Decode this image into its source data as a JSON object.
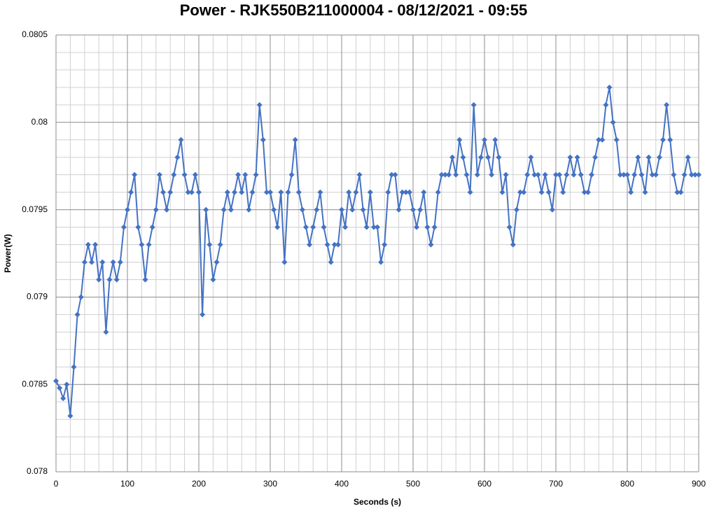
{
  "chart_data": {
    "type": "line",
    "title": "Power - RJK550B211000004 - 08/12/2021 - 09:55",
    "x_label": "Seconds (s)",
    "y_label": "Power(W)",
    "xlim": [
      0,
      900
    ],
    "xticks": [
      0,
      100,
      200,
      300,
      400,
      500,
      600,
      700,
      800,
      900
    ],
    "ylim": [
      0.078,
      0.0805
    ],
    "yticks": [
      0.078,
      0.0785,
      0.079,
      0.0795,
      0.08,
      0.0805
    ],
    "grid": true,
    "minor_grid": true,
    "series": [
      {
        "name": "Power(W)",
        "color": "#4472c4",
        "x": [
          0,
          5,
          10,
          15,
          20,
          25,
          30,
          35,
          40,
          45,
          50,
          55,
          60,
          65,
          70,
          75,
          80,
          85,
          90,
          95,
          100,
          105,
          110,
          115,
          120,
          125,
          130,
          135,
          140,
          145,
          150,
          155,
          160,
          165,
          170,
          175,
          180,
          185,
          190,
          195,
          200,
          205,
          210,
          215,
          220,
          225,
          230,
          235,
          240,
          245,
          250,
          255,
          260,
          265,
          270,
          275,
          280,
          285,
          290,
          295,
          300,
          305,
          310,
          315,
          320,
          325,
          330,
          335,
          340,
          345,
          350,
          355,
          360,
          365,
          370,
          375,
          380,
          385,
          390,
          395,
          400,
          405,
          410,
          415,
          420,
          425,
          430,
          435,
          440,
          445,
          450,
          455,
          460,
          465,
          470,
          475,
          480,
          485,
          490,
          495,
          500,
          505,
          510,
          515,
          520,
          525,
          530,
          535,
          540,
          545,
          550,
          555,
          560,
          565,
          570,
          575,
          580,
          585,
          590,
          595,
          600,
          605,
          610,
          615,
          620,
          625,
          630,
          635,
          640,
          645,
          650,
          655,
          660,
          665,
          670,
          675,
          680,
          685,
          690,
          695,
          700,
          705,
          710,
          715,
          720,
          725,
          730,
          735,
          740,
          745,
          750,
          755,
          760,
          765,
          770,
          775,
          780,
          785,
          790,
          795,
          800,
          805,
          810,
          815,
          820,
          825,
          830,
          835,
          840,
          845,
          850,
          855,
          860,
          865,
          870,
          875,
          880,
          885,
          890,
          895,
          900
        ],
        "values": [
          0.07852,
          0.07848,
          0.07842,
          0.0785,
          0.07832,
          0.0786,
          0.0789,
          0.079,
          0.0792,
          0.0793,
          0.0792,
          0.0793,
          0.0791,
          0.0792,
          0.0788,
          0.0791,
          0.0792,
          0.0791,
          0.0792,
          0.0794,
          0.0795,
          0.0796,
          0.0797,
          0.0794,
          0.0793,
          0.0791,
          0.0793,
          0.0794,
          0.0795,
          0.0797,
          0.0796,
          0.0795,
          0.0796,
          0.0797,
          0.0798,
          0.0799,
          0.0797,
          0.0796,
          0.0796,
          0.0797,
          0.0796,
          0.0789,
          0.0795,
          0.0793,
          0.0791,
          0.0792,
          0.0793,
          0.0795,
          0.0796,
          0.0795,
          0.0796,
          0.0797,
          0.0796,
          0.0797,
          0.0795,
          0.0796,
          0.0797,
          0.0801,
          0.0799,
          0.0796,
          0.0796,
          0.0795,
          0.0794,
          0.0796,
          0.0792,
          0.0796,
          0.0797,
          0.0799,
          0.0796,
          0.0795,
          0.0794,
          0.0793,
          0.0794,
          0.0795,
          0.0796,
          0.0794,
          0.0793,
          0.0792,
          0.0793,
          0.0793,
          0.0795,
          0.0794,
          0.0796,
          0.0795,
          0.0796,
          0.0797,
          0.0795,
          0.0794,
          0.0796,
          0.0794,
          0.0794,
          0.0792,
          0.0793,
          0.0796,
          0.0797,
          0.0797,
          0.0795,
          0.0796,
          0.0796,
          0.0796,
          0.0795,
          0.0794,
          0.0795,
          0.0796,
          0.0794,
          0.0793,
          0.0794,
          0.0796,
          0.0797,
          0.0797,
          0.0797,
          0.0798,
          0.0797,
          0.0799,
          0.0798,
          0.0797,
          0.0796,
          0.0801,
          0.0797,
          0.0798,
          0.0799,
          0.0798,
          0.0797,
          0.0799,
          0.0798,
          0.0796,
          0.0797,
          0.0794,
          0.0793,
          0.0795,
          0.0796,
          0.0796,
          0.0797,
          0.0798,
          0.0797,
          0.0797,
          0.0796,
          0.0797,
          0.0796,
          0.0795,
          0.0797,
          0.0797,
          0.0796,
          0.0797,
          0.0798,
          0.0797,
          0.0798,
          0.0797,
          0.0796,
          0.0796,
          0.0797,
          0.0798,
          0.0799,
          0.0799,
          0.0801,
          0.0802,
          0.08,
          0.0799,
          0.0797,
          0.0797,
          0.0797,
          0.0796,
          0.0797,
          0.0798,
          0.0797,
          0.0796,
          0.0798,
          0.0797,
          0.0797,
          0.0798,
          0.0799,
          0.0801,
          0.0799,
          0.0797,
          0.0796,
          0.0796,
          0.0797,
          0.0798,
          0.0797,
          0.0797,
          0.0797
        ]
      }
    ]
  }
}
